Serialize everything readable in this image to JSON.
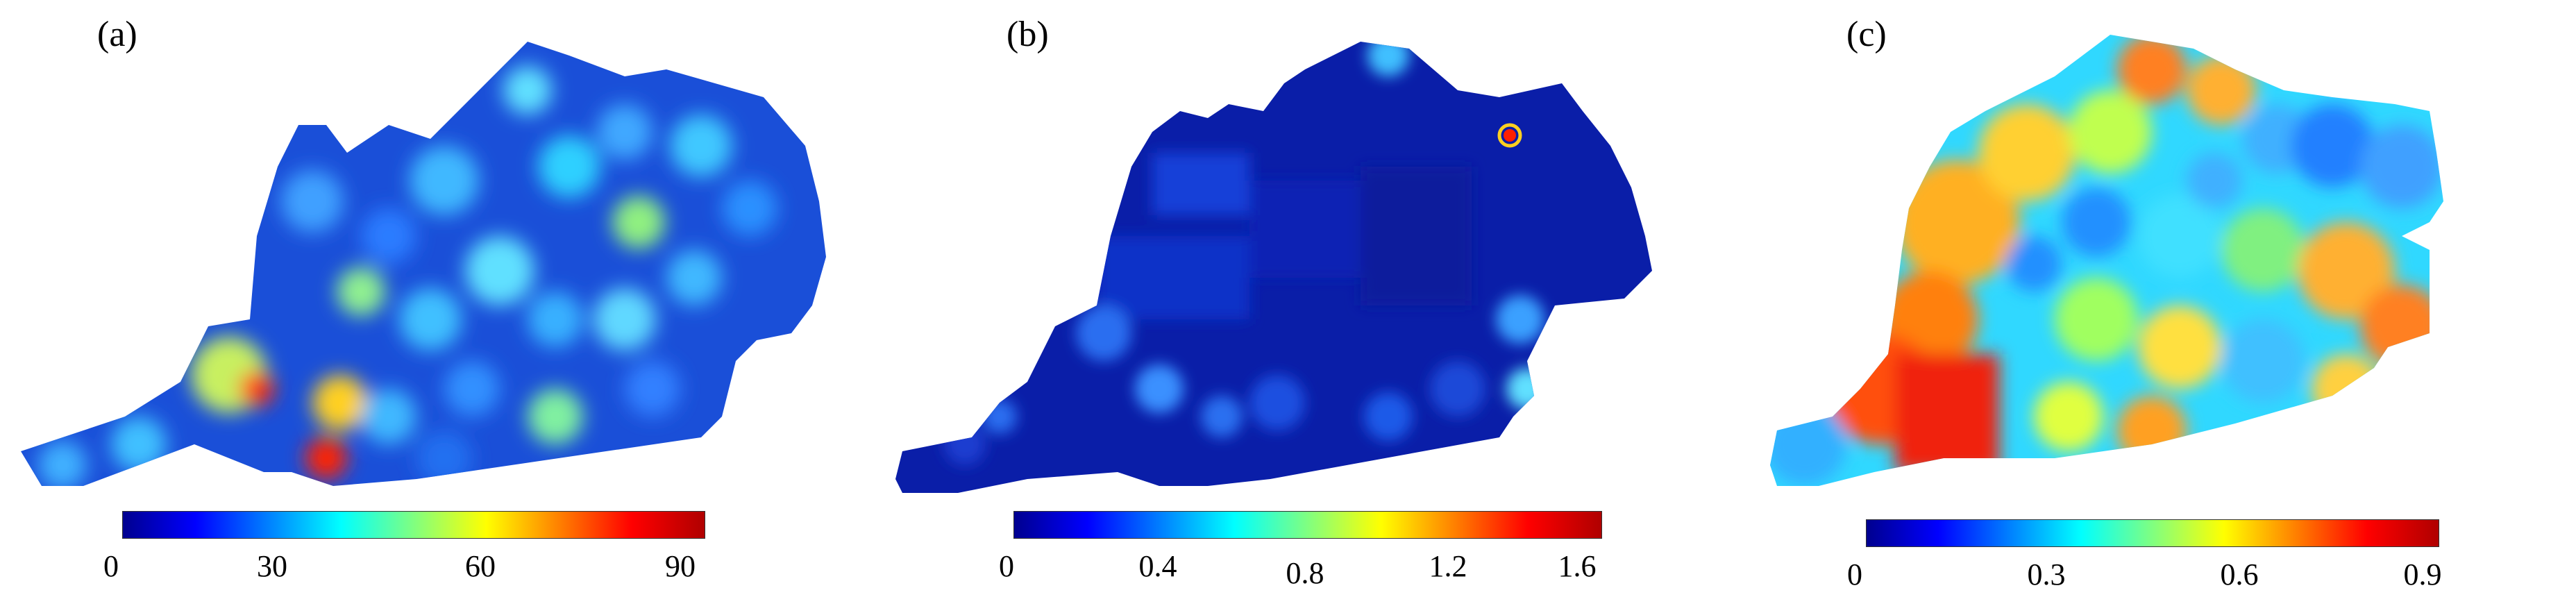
{
  "chart_data": [
    {
      "type": "heatmap",
      "panel_label": "(a)",
      "colormap": "jet",
      "colorbar": {
        "min": 0,
        "max": 90,
        "ticks": [
          "0",
          "30",
          "60",
          "90"
        ]
      }
    },
    {
      "type": "heatmap",
      "panel_label": "(b)",
      "colormap": "jet",
      "colorbar": {
        "min": 0,
        "max": 1.6,
        "ticks": [
          "0",
          "0.4",
          "0.8",
          "1.2",
          "1.6"
        ]
      }
    },
    {
      "type": "heatmap",
      "panel_label": "(c)",
      "colormap": "jet",
      "colorbar": {
        "min": 0,
        "max": 0.9,
        "ticks": [
          "0",
          "0.3",
          "0.6",
          "0.9"
        ]
      }
    }
  ],
  "colors": {
    "jet_low": "#00008f",
    "jet_mid": "#00ffff",
    "jet_high": "#ff0000"
  }
}
